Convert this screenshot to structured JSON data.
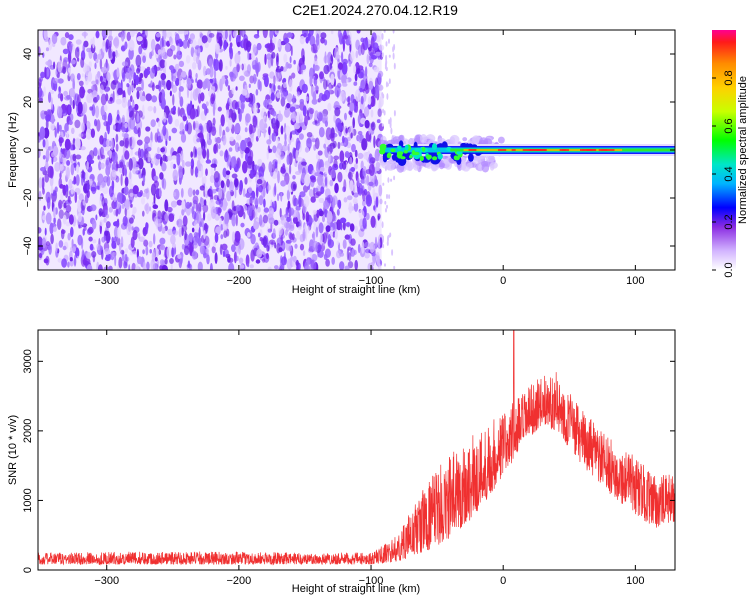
{
  "title": "C2E1.2024.270.04.12.R19",
  "chart_data": [
    {
      "type": "heatmap",
      "xlabel": "Height of straight line (km)",
      "ylabel": "Frequency (Hz)",
      "xlim": [
        -352,
        130
      ],
      "ylim": [
        -50,
        50
      ],
      "xticks": [
        -300,
        -200,
        -100,
        0,
        100
      ],
      "yticks": [
        -40,
        -20,
        0,
        20,
        40
      ],
      "colorbar": {
        "label": "Normalized spectral amplitude",
        "range": [
          0,
          1
        ],
        "ticks": [
          0.0,
          0.2,
          0.4,
          0.6,
          0.8
        ]
      },
      "noise_region_x": [
        -352,
        -92
      ],
      "signal_band_x": [
        -92,
        130
      ],
      "signal_center_frequency": 0,
      "legend": "none",
      "grid": false
    },
    {
      "type": "line",
      "xlabel": "Height of straight line (km)",
      "ylabel": "SNR (10 * v/v)",
      "xlim": [
        -352,
        130
      ],
      "ylim": [
        0,
        3450
      ],
      "xticks": [
        -300,
        -200,
        -100,
        0,
        100
      ],
      "yticks": [
        0,
        1000,
        2000,
        3000
      ],
      "color": "#f03030",
      "envelope": {
        "x": [
          -352,
          -300,
          -250,
          -200,
          -150,
          -100,
          -80,
          -60,
          -40,
          -20,
          0,
          20,
          30,
          40,
          60,
          80,
          100,
          115,
          130
        ],
        "low": [
          80,
          80,
          80,
          80,
          80,
          80,
          120,
          250,
          450,
          800,
          1350,
          1900,
          2100,
          2000,
          1500,
          1100,
          800,
          600,
          700
        ],
        "high": [
          250,
          260,
          270,
          260,
          250,
          250,
          500,
          1200,
          1700,
          2000,
          2300,
          2650,
          2800,
          2850,
          2300,
          1900,
          1650,
          1350,
          1400
        ]
      },
      "peak": {
        "x": 8,
        "y": 3450
      },
      "legend": "none",
      "grid": false
    }
  ]
}
